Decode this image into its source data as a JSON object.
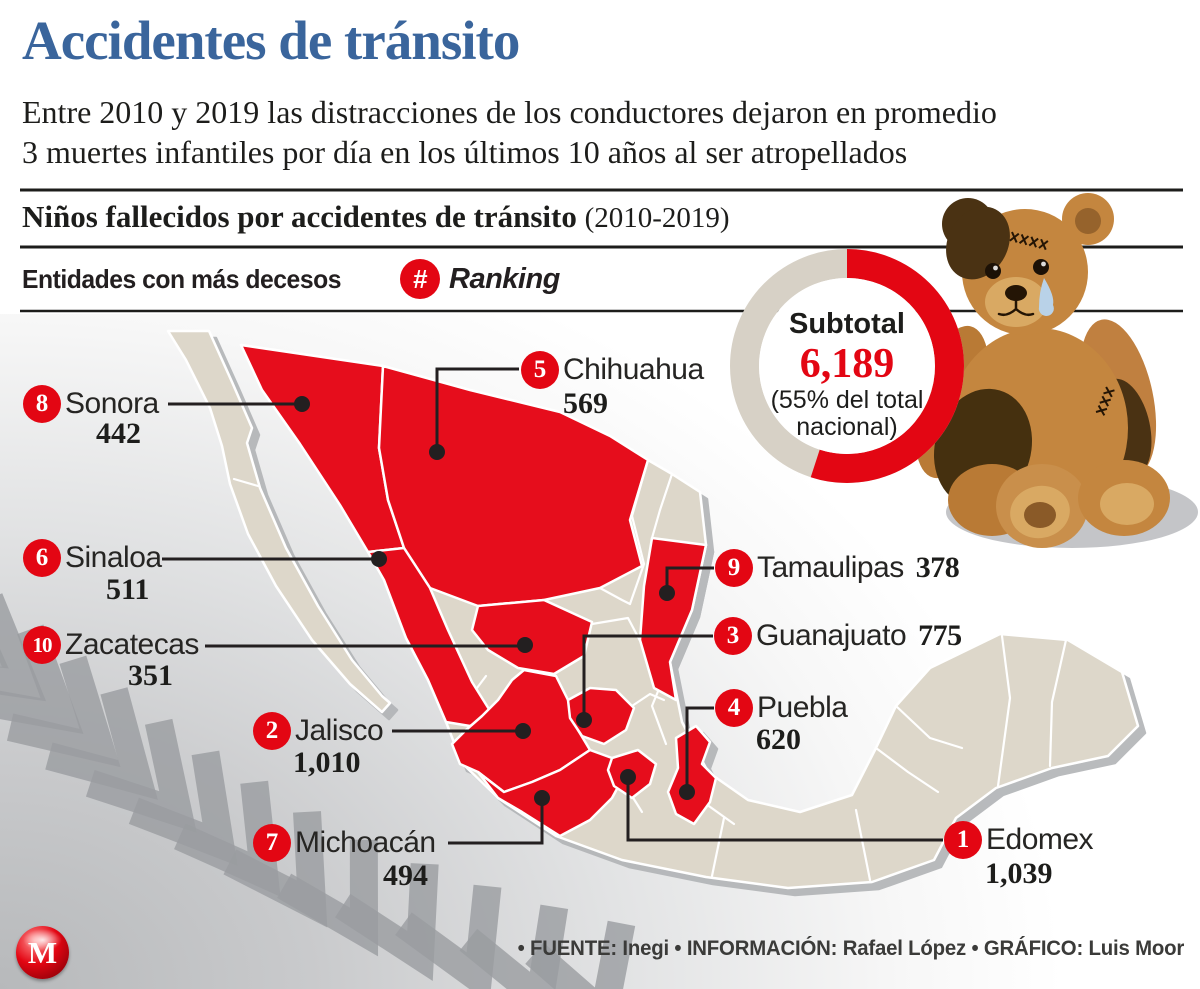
{
  "header": {
    "title": "Accidentes de tránsito",
    "subtitle_lines": [
      "Entre 2010 y 2019 las distracciones de los conductores dejaron en promedio",
      "3 muertes infantiles por día en los últimos 10 años al ser atropellados"
    ],
    "section_title": "Niños fallecidos por accidentes de tránsito",
    "section_period": "(2010-2019)"
  },
  "legend": {
    "label": "Entidades con más decesos",
    "symbol": "#",
    "ranking_label": "Ranking"
  },
  "donut": {
    "title": "Subtotal",
    "value": "6,189",
    "note_lines": [
      "(55% del total",
      "nacional)"
    ]
  },
  "chart_data": {
    "type": "map",
    "title": "Niños fallecidos por accidentes de tránsito (2010-2019)",
    "series_label": "Entidades con más decesos",
    "entries": [
      {
        "rank": 1,
        "state": "Edomex",
        "value": 1039,
        "display": "1,039"
      },
      {
        "rank": 2,
        "state": "Jalisco",
        "value": 1010,
        "display": "1,010"
      },
      {
        "rank": 3,
        "state": "Guanajuato",
        "value": 775,
        "display": "775"
      },
      {
        "rank": 4,
        "state": "Puebla",
        "value": 620,
        "display": "620"
      },
      {
        "rank": 5,
        "state": "Chihuahua",
        "value": 569,
        "display": "569"
      },
      {
        "rank": 6,
        "state": "Sinaloa",
        "value": 511,
        "display": "511"
      },
      {
        "rank": 7,
        "state": "Michoacán",
        "value": 494,
        "display": "494"
      },
      {
        "rank": 8,
        "state": "Sonora",
        "value": 442,
        "display": "442"
      },
      {
        "rank": 9,
        "state": "Tamaulipas",
        "value": 378,
        "display": "378"
      },
      {
        "rank": 10,
        "state": "Zacatecas",
        "value": 351,
        "display": "351"
      }
    ],
    "subtotal": {
      "value": 6189,
      "display": "6,189",
      "share": "55% del total nacional"
    },
    "donut": {
      "percent_red": 55
    }
  },
  "footer": {
    "credits": "• FUENTE: Inegi  •  INFORMACIÓN: Rafael López  •  GRÁFICO: Luis Moor",
    "logo_letter": "M"
  },
  "colors": {
    "accent_red": "#e30613",
    "map_red": "#e60d1c",
    "state_beige": "#ddd7ca",
    "ring_gray": "#d7d1c6",
    "title_blue": "#3a659c",
    "ink": "#231f20"
  }
}
